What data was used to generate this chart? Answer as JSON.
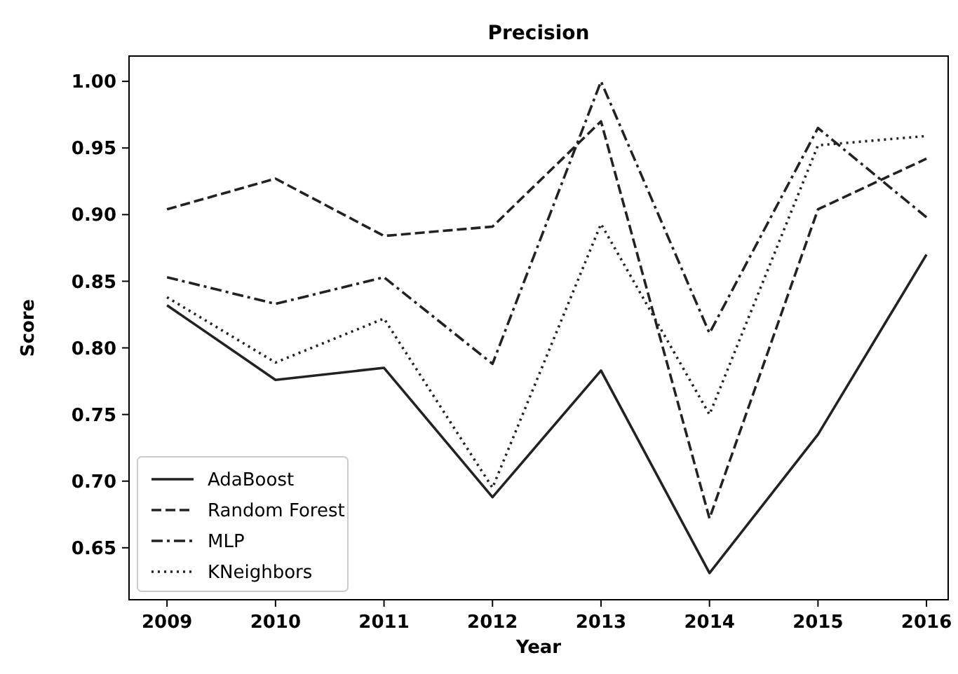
{
  "chart_data": {
    "type": "line",
    "title": "Precision",
    "xlabel": "Year",
    "ylabel": "Score",
    "x": [
      2009,
      2010,
      2011,
      2012,
      2013,
      2014,
      2015,
      2016
    ],
    "xlim": [
      2008.65,
      2016.2
    ],
    "xticks": [
      2009,
      2010,
      2011,
      2012,
      2013,
      2014,
      2015,
      2016
    ],
    "ylim": [
      0.611,
      1.019
    ],
    "yticks": [
      {
        "value": 0.65,
        "label": "0.65"
      },
      {
        "value": 0.7,
        "label": "0.70"
      },
      {
        "value": 0.75,
        "label": "0.75"
      },
      {
        "value": 0.8,
        "label": "0.80"
      },
      {
        "value": 0.85,
        "label": "0.85"
      },
      {
        "value": 0.9,
        "label": "0.90"
      },
      {
        "value": 0.95,
        "label": "0.95"
      },
      {
        "value": 1.0,
        "label": "1.00"
      }
    ],
    "grid": false,
    "legend": "bottom left",
    "marker": "none",
    "series": [
      {
        "name": "AdaBoost",
        "color": "#222222",
        "line_style": "solid",
        "values": [
          0.832,
          0.776,
          0.785,
          0.688,
          0.783,
          0.631,
          0.735,
          0.87
        ]
      },
      {
        "name": "Random Forest",
        "color": "#222222",
        "line_style": "dashed",
        "values": [
          0.904,
          0.927,
          0.884,
          0.891,
          0.97,
          0.672,
          0.904,
          0.942
        ]
      },
      {
        "name": "MLP",
        "color": "#222222",
        "line_style": "dashdot",
        "values": [
          0.853,
          0.833,
          0.853,
          0.788,
          1.0,
          0.811,
          0.965,
          0.898
        ]
      },
      {
        "name": "KNeighbors",
        "color": "#222222",
        "line_style": "dotted",
        "values": [
          0.838,
          0.789,
          0.822,
          0.695,
          0.893,
          0.75,
          0.952,
          0.959
        ]
      }
    ]
  }
}
